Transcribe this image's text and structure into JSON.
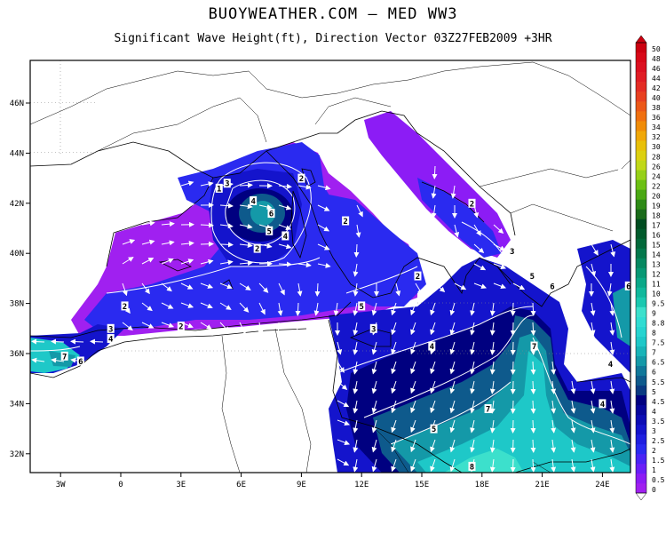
{
  "header": {
    "title": "BUOYWEATHER.COM — MED WW3",
    "subtitle": "Significant Wave Height(ft), Direction Vector 03Z27FEB2009 +3HR"
  },
  "axes": {
    "lat_labels": [
      {
        "value": 46,
        "text": "46N"
      },
      {
        "value": 44,
        "text": "44N"
      },
      {
        "value": 42,
        "text": "42N"
      },
      {
        "value": 40,
        "text": "40N"
      },
      {
        "value": 38,
        "text": "38N"
      },
      {
        "value": 36,
        "text": "36N"
      },
      {
        "value": 34,
        "text": "34N"
      },
      {
        "value": 32,
        "text": "32N"
      }
    ],
    "lon_labels": [
      {
        "value": -3,
        "text": "3W"
      },
      {
        "value": 0,
        "text": "0"
      },
      {
        "value": 3,
        "text": "3E"
      },
      {
        "value": 6,
        "text": "6E"
      },
      {
        "value": 9,
        "text": "9E"
      },
      {
        "value": 12,
        "text": "12E"
      },
      {
        "value": 15,
        "text": "15E"
      },
      {
        "value": 18,
        "text": "18E"
      },
      {
        "value": 21,
        "text": "21E"
      },
      {
        "value": 24,
        "text": "24E"
      }
    ]
  },
  "legend": {
    "levels": [
      {
        "label": "0",
        "color": "#a020f0"
      },
      {
        "label": "0.5",
        "color": "#8c1cf5"
      },
      {
        "label": "1",
        "color": "#6a1ef8"
      },
      {
        "label": "1.5",
        "color": "#4a23f5"
      },
      {
        "label": "2",
        "color": "#2a2af0"
      },
      {
        "label": "2.5",
        "color": "#1f1fe0"
      },
      {
        "label": "3",
        "color": "#1414cc"
      },
      {
        "label": "3.5",
        "color": "#0c0cb4"
      },
      {
        "label": "4",
        "color": "#06069c"
      },
      {
        "label": "4.5",
        "color": "#000080"
      },
      {
        "label": "5",
        "color": "#0a3a82"
      },
      {
        "label": "5.5",
        "color": "#0e5a8c"
      },
      {
        "label": "6",
        "color": "#10789a"
      },
      {
        "label": "6.5",
        "color": "#1499a8"
      },
      {
        "label": "7",
        "color": "#18b4b8"
      },
      {
        "label": "7.5",
        "color": "#1ec8c8"
      },
      {
        "label": "8",
        "color": "#26d4d0"
      },
      {
        "label": "8.8",
        "color": "#30dcd2"
      },
      {
        "label": "9",
        "color": "#3ce0cc"
      },
      {
        "label": "9.5",
        "color": "#1ac8b0"
      },
      {
        "label": "10",
        "color": "#10b89c"
      },
      {
        "label": "11",
        "color": "#0aa888"
      },
      {
        "label": "12",
        "color": "#089874"
      },
      {
        "label": "13",
        "color": "#068860"
      },
      {
        "label": "14",
        "color": "#04784c"
      },
      {
        "label": "15",
        "color": "#02683a"
      },
      {
        "label": "16",
        "color": "#015a2c"
      },
      {
        "label": "17",
        "color": "#004c20"
      },
      {
        "label": "18",
        "color": "#1a6a1a"
      },
      {
        "label": "19",
        "color": "#2e8a16"
      },
      {
        "label": "20",
        "color": "#4aa814"
      },
      {
        "label": "22",
        "color": "#6cc014"
      },
      {
        "label": "24",
        "color": "#96d018"
      },
      {
        "label": "26",
        "color": "#c0d818"
      },
      {
        "label": "28",
        "color": "#dcd010"
      },
      {
        "label": "30",
        "color": "#e8c008"
      },
      {
        "label": "32",
        "color": "#f0a808"
      },
      {
        "label": "34",
        "color": "#f08c08"
      },
      {
        "label": "36",
        "color": "#f07010"
      },
      {
        "label": "38",
        "color": "#ec5818"
      },
      {
        "label": "40",
        "color": "#e84020"
      },
      {
        "label": "42",
        "color": "#e42c24"
      },
      {
        "label": "44",
        "color": "#e01c24"
      },
      {
        "label": "46",
        "color": "#dc1020"
      },
      {
        "label": "48",
        "color": "#d80818"
      },
      {
        "label": "50",
        "color": "#cc0010"
      }
    ]
  },
  "contour_labels": [
    {
      "text": "1",
      "lon": 4.9,
      "lat": 42.6
    },
    {
      "text": "3",
      "lon": 5.3,
      "lat": 42.8
    },
    {
      "text": "2",
      "lon": 9.0,
      "lat": 43.0
    },
    {
      "text": "4",
      "lon": 6.6,
      "lat": 42.1
    },
    {
      "text": "6",
      "lon": 7.5,
      "lat": 41.6
    },
    {
      "text": "5",
      "lon": 7.4,
      "lat": 40.9
    },
    {
      "text": "4",
      "lon": 8.2,
      "lat": 40.7
    },
    {
      "text": "2",
      "lon": 6.8,
      "lat": 40.2
    },
    {
      "text": "2",
      "lon": 11.2,
      "lat": 41.3
    },
    {
      "text": "2",
      "lon": 17.5,
      "lat": 42.0
    },
    {
      "text": "2",
      "lon": 14.8,
      "lat": 39.1
    },
    {
      "text": "3",
      "lon": 19.5,
      "lat": 40.1
    },
    {
      "text": "5",
      "lon": 20.5,
      "lat": 39.1
    },
    {
      "text": "6",
      "lon": 21.5,
      "lat": 38.7
    },
    {
      "text": "5",
      "lon": 12.0,
      "lat": 37.9
    },
    {
      "text": "2",
      "lon": 0.2,
      "lat": 37.9
    },
    {
      "text": "3",
      "lon": -0.5,
      "lat": 37.0
    },
    {
      "text": "4",
      "lon": -0.5,
      "lat": 36.6
    },
    {
      "text": "2",
      "lon": 3.0,
      "lat": 37.1
    },
    {
      "text": "3",
      "lon": 12.6,
      "lat": 37.0
    },
    {
      "text": "4",
      "lon": 15.5,
      "lat": 36.3
    },
    {
      "text": "7",
      "lon": 20.6,
      "lat": 36.3
    },
    {
      "text": "7",
      "lon": 18.3,
      "lat": 33.8
    },
    {
      "text": "5",
      "lon": 15.6,
      "lat": 33.0
    },
    {
      "text": "7",
      "lon": -2.8,
      "lat": 35.9
    },
    {
      "text": "6",
      "lon": -2.0,
      "lat": 35.7
    },
    {
      "text": "4",
      "lon": 24.0,
      "lat": 34.0
    },
    {
      "text": "6",
      "lon": 25.3,
      "lat": 38.7
    },
    {
      "text": "4",
      "lon": 24.4,
      "lat": 35.6
    },
    {
      "text": "8",
      "lon": 17.5,
      "lat": 31.5
    }
  ]
}
